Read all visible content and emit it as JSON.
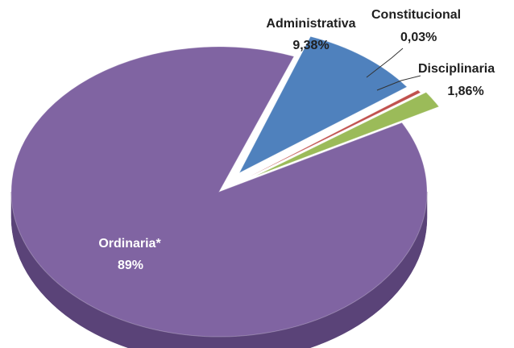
{
  "chart_data": {
    "type": "pie",
    "title": "",
    "slices": [
      {
        "label": "Administrativa",
        "value_label": "9,38%",
        "value": 9.38,
        "color": "#4f81bd",
        "dark": "#35608f"
      },
      {
        "label": "Constitucional",
        "value_label": "0,03%",
        "value": 0.03,
        "color": "#c0504d",
        "dark": "#8e3330"
      },
      {
        "label": "Disciplinaria",
        "value_label": "1,86%",
        "value": 1.86,
        "color": "#9bbb59",
        "dark": "#6f8c36"
      },
      {
        "label": "Ordinaria*",
        "value_label": "89%",
        "value": 89,
        "color": "#8064a2",
        "dark": "#5a4378"
      }
    ],
    "style": "3d-exploded",
    "legend": "none"
  }
}
